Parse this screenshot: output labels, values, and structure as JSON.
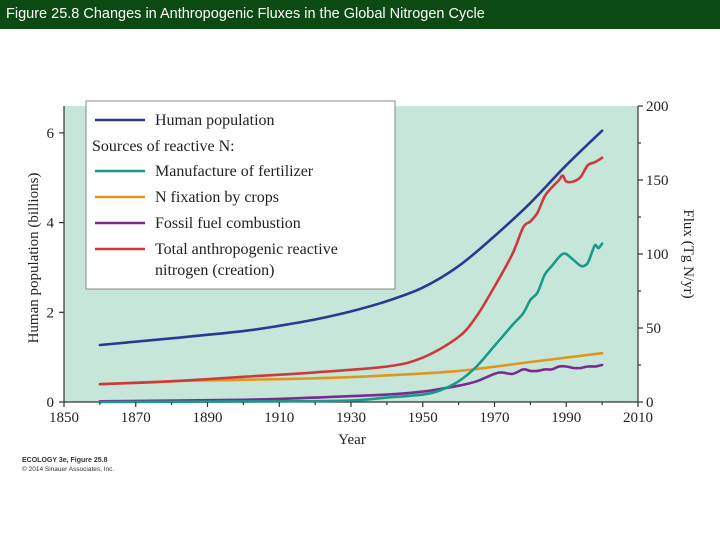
{
  "slide": {
    "title": "Figure 25.8  Changes in Anthropogenic Fluxes in the Global Nitrogen Cycle",
    "credit_line1": "ECOLOGY 3e, Figure 25.8",
    "credit_line2": "© 2014 Sinauer Associates, Inc."
  },
  "colors": {
    "title_bar": "#0b4a12",
    "plot_bg": "#c5e6d9",
    "population": "#2b3990",
    "fertilizer": "#1a9a8a",
    "crops": "#e0961c",
    "fossil": "#7d2a8f",
    "total": "#cc3a3e"
  },
  "chart_data": {
    "type": "line",
    "xlabel": "Year",
    "ylabel": "Human population (billions)",
    "ylabel_right": "Flux (Tg N/yr)",
    "xlim": [
      1850,
      2010
    ],
    "ylim": [
      0,
      6.6
    ],
    "ylim_right": [
      0,
      200
    ],
    "x_ticks": [
      "1850",
      "1870",
      "1890",
      "1910",
      "1930",
      "1950",
      "1970",
      "1990",
      "2010"
    ],
    "y_ticks": [
      "0",
      "2",
      "4",
      "6"
    ],
    "y_ticks_right": [
      "0",
      "50",
      "100",
      "150",
      "200"
    ],
    "legend": {
      "population_label": "Human population",
      "sources_header": "Sources of reactive N:",
      "fertilizer_label": "Manufacture of fertilizer",
      "crops_label": "N fixation by crops",
      "fossil_label": "Fossil fuel combustion",
      "total_label_line1": "Total anthropogenic reactive",
      "total_label_line2": "nitrogen (creation)"
    },
    "series": [
      {
        "name": "Human population",
        "axis": "left",
        "x": [
          1860,
          1880,
          1900,
          1910,
          1920,
          1930,
          1940,
          1950,
          1960,
          1970,
          1980,
          1990,
          2000
        ],
        "y": [
          1.27,
          1.42,
          1.58,
          1.7,
          1.84,
          2.02,
          2.25,
          2.55,
          3.03,
          3.7,
          4.44,
          5.28,
          6.05
        ]
      },
      {
        "name": "Manufacture of fertilizer",
        "axis": "right",
        "x": [
          1860,
          1910,
          1930,
          1940,
          1950,
          1955,
          1960,
          1965,
          1970,
          1975,
          1978,
          1980,
          1982,
          1984,
          1986,
          1988,
          1989,
          1990,
          1992,
          1994,
          1995,
          1996,
          1997,
          1998,
          1999,
          2000
        ],
        "y": [
          0,
          0.5,
          1,
          3,
          5,
          8,
          14,
          24,
          38,
          52,
          60,
          69,
          74,
          86,
          92,
          98,
          100,
          100,
          96,
          92,
          92,
          94,
          100,
          106,
          104,
          107
        ]
      },
      {
        "name": "N fixation by crops",
        "axis": "right",
        "x": [
          1860,
          1880,
          1900,
          1920,
          1940,
          1960,
          1980,
          2000
        ],
        "y": [
          12,
          14,
          15,
          16,
          18,
          21,
          27,
          33
        ]
      },
      {
        "name": "Fossil fuel combustion",
        "axis": "right",
        "x": [
          1860,
          1900,
          1920,
          1940,
          1950,
          1960,
          1965,
          1970,
          1972,
          1975,
          1978,
          1980,
          1982,
          1984,
          1986,
          1988,
          1990,
          1992,
          1994,
          1996,
          1998,
          2000
        ],
        "y": [
          0.5,
          1.5,
          3,
          5,
          7,
          11,
          14,
          19,
          20,
          19,
          22,
          21,
          21,
          22,
          22,
          24,
          24,
          23,
          23,
          24,
          24,
          25
        ]
      },
      {
        "name": "Total anthropogenic reactive nitrogen (creation)",
        "axis": "right",
        "x": [
          1860,
          1880,
          1900,
          1920,
          1940,
          1950,
          1960,
          1965,
          1970,
          1975,
          1978,
          1980,
          1982,
          1984,
          1986,
          1988,
          1989,
          1990,
          1992,
          1994,
          1996,
          1998,
          2000
        ],
        "y": [
          12,
          14,
          17,
          20,
          24,
          30,
          44,
          58,
          78,
          100,
          118,
          122,
          128,
          139,
          145,
          150,
          153,
          149,
          149,
          152,
          160,
          162,
          165
        ]
      }
    ]
  }
}
